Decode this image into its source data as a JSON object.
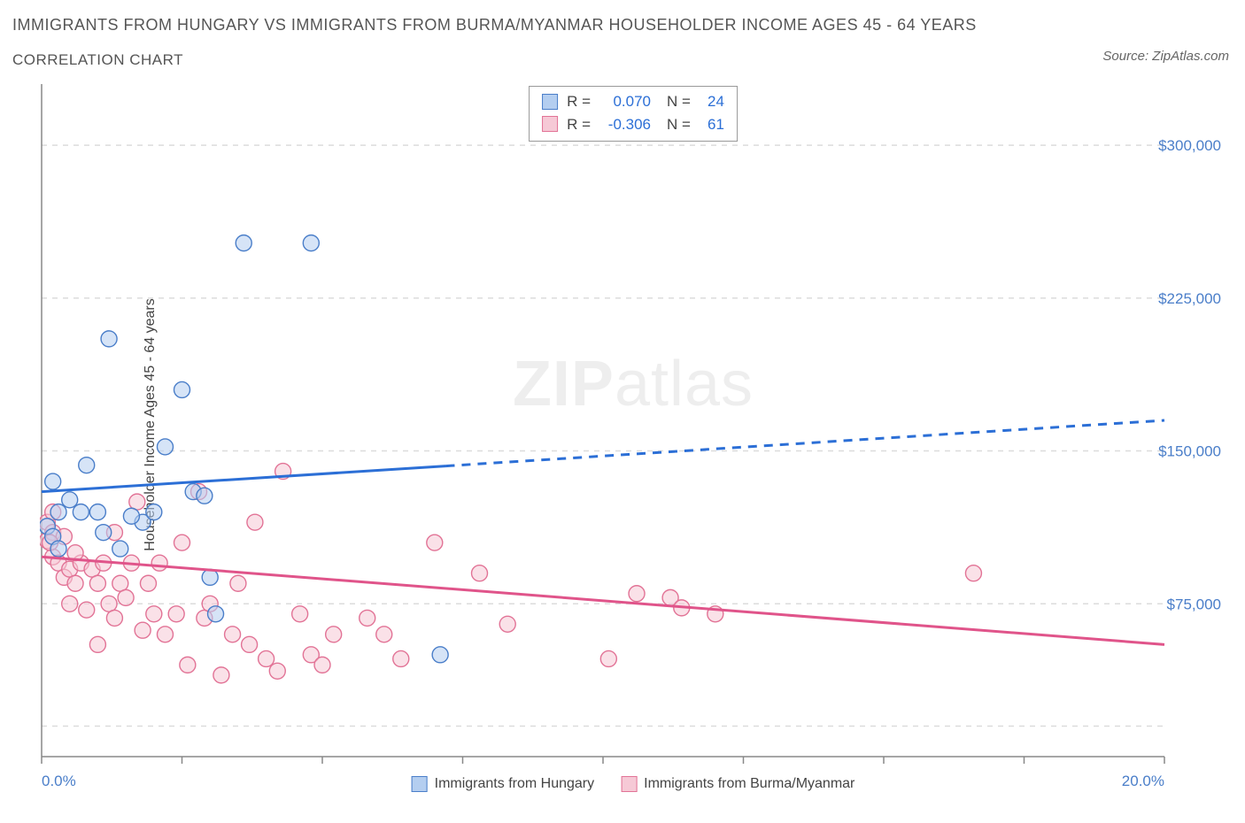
{
  "title_main": "IMMIGRANTS FROM HUNGARY VS IMMIGRANTS FROM BURMA/MYANMAR HOUSEHOLDER INCOME AGES 45 - 64 YEARS",
  "title_sub": "CORRELATION CHART",
  "source_prefix": "Source: ",
  "source_name": "ZipAtlas.com",
  "watermark_bold": "ZIP",
  "watermark_light": "atlas",
  "chart": {
    "type": "scatter",
    "y_axis_label": "Householder Income Ages 45 - 64 years",
    "xlim": [
      0,
      20
    ],
    "ylim": [
      0,
      330000
    ],
    "x_ticks_major": [
      0,
      2.5,
      5,
      7.5,
      10,
      12.5,
      15,
      17.5,
      20
    ],
    "x_tick_labels": {
      "0": "0.0%",
      "20": "20.0%"
    },
    "y_ticks": [
      75000,
      150000,
      225000,
      300000
    ],
    "y_tick_labels": [
      "$75,000",
      "$150,000",
      "$225,000",
      "$300,000"
    ],
    "grid_color": "#dcdcdc",
    "background_color": "#ffffff",
    "axis_color": "#888888",
    "tick_label_color": "#4a7ec9",
    "marker_radius": 9,
    "marker_opacity": 0.55,
    "series": [
      {
        "name": "Immigrants from Hungary",
        "color_fill": "#b4cef0",
        "color_stroke": "#4a7ec9",
        "r_value": "0.070",
        "n_value": "24",
        "trend": {
          "x1": 0,
          "y1": 130000,
          "x2": 20,
          "y2": 165000,
          "solid_until_x": 7.2,
          "color": "#2c6fd6",
          "width": 3
        },
        "points": [
          [
            0.1,
            113000
          ],
          [
            0.2,
            135000
          ],
          [
            0.2,
            108000
          ],
          [
            0.3,
            120000
          ],
          [
            0.3,
            102000
          ],
          [
            0.7,
            120000
          ],
          [
            0.8,
            143000
          ],
          [
            1.0,
            120000
          ],
          [
            1.1,
            110000
          ],
          [
            1.2,
            205000
          ],
          [
            1.4,
            102000
          ],
          [
            1.8,
            115000
          ],
          [
            2.0,
            120000
          ],
          [
            2.2,
            152000
          ],
          [
            2.5,
            180000
          ],
          [
            2.7,
            130000
          ],
          [
            2.9,
            128000
          ],
          [
            3.0,
            88000
          ],
          [
            3.1,
            70000
          ],
          [
            3.6,
            252000
          ],
          [
            4.8,
            252000
          ],
          [
            7.1,
            50000
          ],
          [
            1.6,
            118000
          ],
          [
            0.5,
            126000
          ]
        ]
      },
      {
        "name": "Immigrants from Burma/Myanmar",
        "color_fill": "#f6c9d6",
        "color_stroke": "#e27396",
        "r_value": "-0.306",
        "n_value": "61",
        "trend": {
          "x1": 0,
          "y1": 98000,
          "x2": 20,
          "y2": 55000,
          "solid_until_x": 20,
          "color": "#e0548a",
          "width": 3
        },
        "points": [
          [
            0.1,
            106000
          ],
          [
            0.1,
            115000
          ],
          [
            0.2,
            98000
          ],
          [
            0.2,
            110000
          ],
          [
            0.2,
            120000
          ],
          [
            0.3,
            95000
          ],
          [
            0.4,
            88000
          ],
          [
            0.4,
            108000
          ],
          [
            0.5,
            75000
          ],
          [
            0.5,
            92000
          ],
          [
            0.6,
            85000
          ],
          [
            0.7,
            95000
          ],
          [
            0.8,
            72000
          ],
          [
            0.9,
            92000
          ],
          [
            1.0,
            85000
          ],
          [
            1.0,
            55000
          ],
          [
            1.1,
            95000
          ],
          [
            1.2,
            75000
          ],
          [
            1.3,
            68000
          ],
          [
            1.4,
            85000
          ],
          [
            1.5,
            78000
          ],
          [
            1.6,
            95000
          ],
          [
            1.7,
            125000
          ],
          [
            1.8,
            62000
          ],
          [
            1.9,
            85000
          ],
          [
            2.0,
            70000
          ],
          [
            2.1,
            95000
          ],
          [
            2.2,
            60000
          ],
          [
            2.4,
            70000
          ],
          [
            2.5,
            105000
          ],
          [
            2.6,
            45000
          ],
          [
            2.8,
            130000
          ],
          [
            2.9,
            68000
          ],
          [
            3.0,
            75000
          ],
          [
            3.2,
            40000
          ],
          [
            3.4,
            60000
          ],
          [
            3.5,
            85000
          ],
          [
            3.7,
            55000
          ],
          [
            3.8,
            115000
          ],
          [
            4.0,
            48000
          ],
          [
            4.2,
            42000
          ],
          [
            4.3,
            140000
          ],
          [
            4.6,
            70000
          ],
          [
            4.8,
            50000
          ],
          [
            5.0,
            45000
          ],
          [
            5.2,
            60000
          ],
          [
            5.8,
            68000
          ],
          [
            6.1,
            60000
          ],
          [
            6.4,
            48000
          ],
          [
            7.0,
            105000
          ],
          [
            7.8,
            90000
          ],
          [
            8.3,
            65000
          ],
          [
            10.1,
            48000
          ],
          [
            10.6,
            80000
          ],
          [
            11.2,
            78000
          ],
          [
            11.4,
            73000
          ],
          [
            12.0,
            70000
          ],
          [
            16.6,
            90000
          ],
          [
            1.3,
            110000
          ],
          [
            0.6,
            100000
          ],
          [
            0.15,
            105000
          ]
        ]
      }
    ],
    "stats_box": {
      "r_label": "R =",
      "n_label": "N ="
    },
    "legend_labels": [
      "Immigrants from Hungary",
      "Immigrants from Burma/Myanmar"
    ]
  }
}
